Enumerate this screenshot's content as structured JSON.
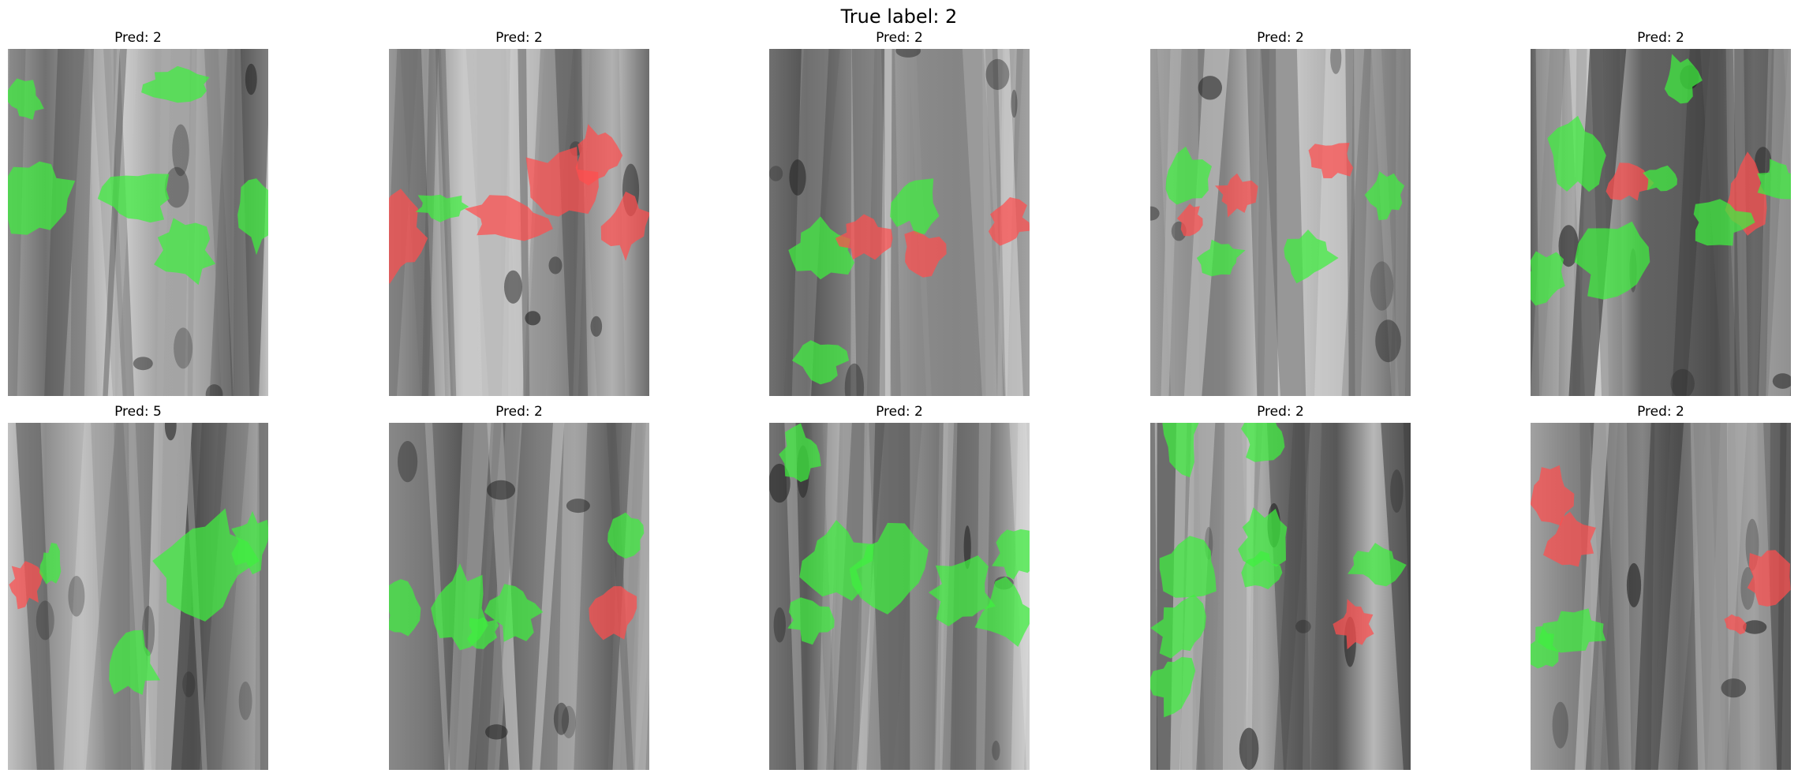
{
  "figure": {
    "suptitle": "True label: 2",
    "overlay_colors": {
      "positive": "#3ef03e",
      "negative": "#ff4d4d"
    },
    "panels": [
      {
        "title": "Pred: 2"
      },
      {
        "title": "Pred: 2"
      },
      {
        "title": "Pred: 2"
      },
      {
        "title": "Pred: 2"
      },
      {
        "title": "Pred: 2"
      },
      {
        "title": "Pred: 5"
      },
      {
        "title": "Pred: 2"
      },
      {
        "title": "Pred: 2"
      },
      {
        "title": "Pred: 2"
      },
      {
        "title": "Pred: 2"
      }
    ]
  }
}
